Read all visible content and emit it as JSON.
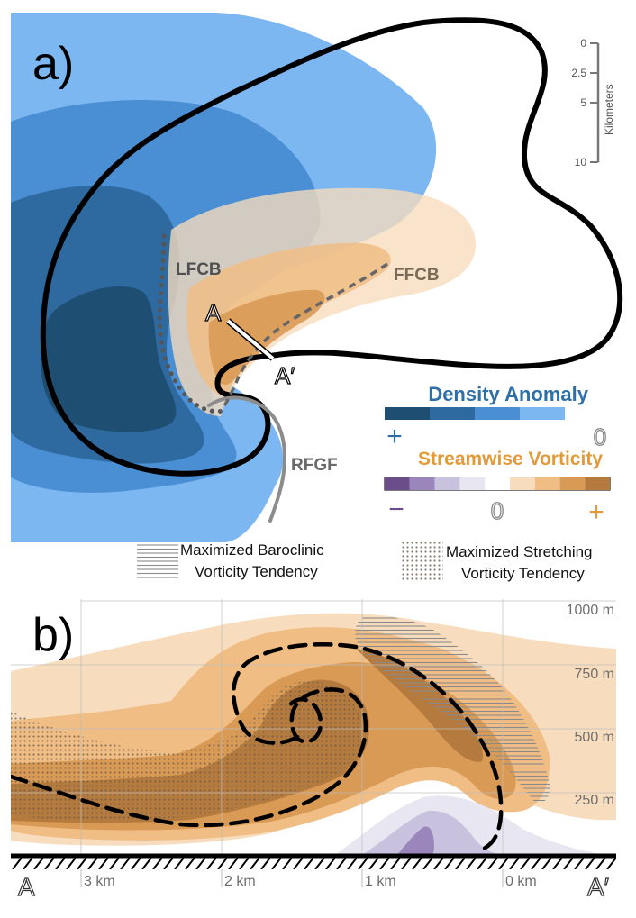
{
  "panel_a": {
    "label": "a)",
    "features": {
      "lfcb": "LFCB",
      "ffcb": "FFCB",
      "rfgf": "RFGF",
      "cross_start": "A",
      "cross_end": "A′"
    },
    "scale_bar": {
      "ticks": [
        "0",
        "2.5",
        "5",
        "10"
      ],
      "unit": "Kilometers"
    },
    "density_legend": {
      "title": "Density Anomaly",
      "plus": "+",
      "zero": "0",
      "colors": [
        "#1f4e73",
        "#2e6aa0",
        "#4a8fd4",
        "#7cb7f2"
      ],
      "title_color": "#2f6fa7"
    },
    "vorticity_legend": {
      "title": "Streamwise Vorticity",
      "minus": "−",
      "zero": "0",
      "plus": "+",
      "colors": [
        "#6b4d8a",
        "#9a86bb",
        "#c9c2df",
        "#e8e6f1",
        "#ffffff",
        "#f7ddbd",
        "#f0bd85",
        "#d99a55",
        "#b57a3e"
      ],
      "title_color": "#e29a3a"
    },
    "hatch_legend": {
      "baroclinic_line1": "Maximized Baroclinic",
      "baroclinic_line2": "Vorticity Tendency",
      "stretching_line1": "Maximized Stretching",
      "stretching_line2": "Vorticity Tendency"
    }
  },
  "panel_b": {
    "label": "b)",
    "heights": [
      "1000 m",
      "750 m",
      "500 m",
      "250 m"
    ],
    "distances": [
      "3 km",
      "2 km",
      "1 km",
      "0 km"
    ],
    "cross_start": "A",
    "cross_end": "A′"
  }
}
